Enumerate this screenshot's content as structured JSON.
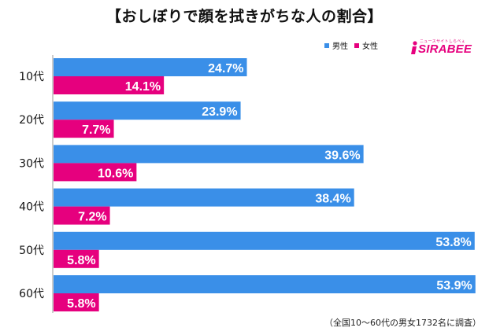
{
  "title": "【おしぼりで顔を拭きがちな人の割合】",
  "legend": {
    "male": "男性",
    "female": "女性"
  },
  "logo": {
    "tagline": "ニュースサイトしらべぇ",
    "brand": "SIRABEE"
  },
  "colors": {
    "male": "#3a8fe8",
    "female": "#e6007e",
    "axis": "#9a9a9a"
  },
  "footnote": "（全国10〜60代の男女1732名に調査）",
  "chart_data": {
    "type": "bar",
    "orientation": "horizontal",
    "categories": [
      "10代",
      "20代",
      "30代",
      "40代",
      "50代",
      "60代"
    ],
    "series": [
      {
        "name": "男性",
        "values": [
          24.7,
          23.9,
          39.6,
          38.4,
          53.8,
          53.9
        ],
        "labels": [
          "24.7%",
          "23.9%",
          "39.6%",
          "38.4%",
          "53.8%",
          "53.9%"
        ]
      },
      {
        "name": "女性",
        "values": [
          14.1,
          7.7,
          10.6,
          7.2,
          5.8,
          5.8
        ],
        "labels": [
          "14.1%",
          "7.7%",
          "10.6%",
          "7.2%",
          "5.8%",
          "5.8%"
        ]
      }
    ],
    "unit": "%",
    "xlim": [
      0,
      60
    ],
    "grid": false,
    "legend_position": "top-right"
  }
}
